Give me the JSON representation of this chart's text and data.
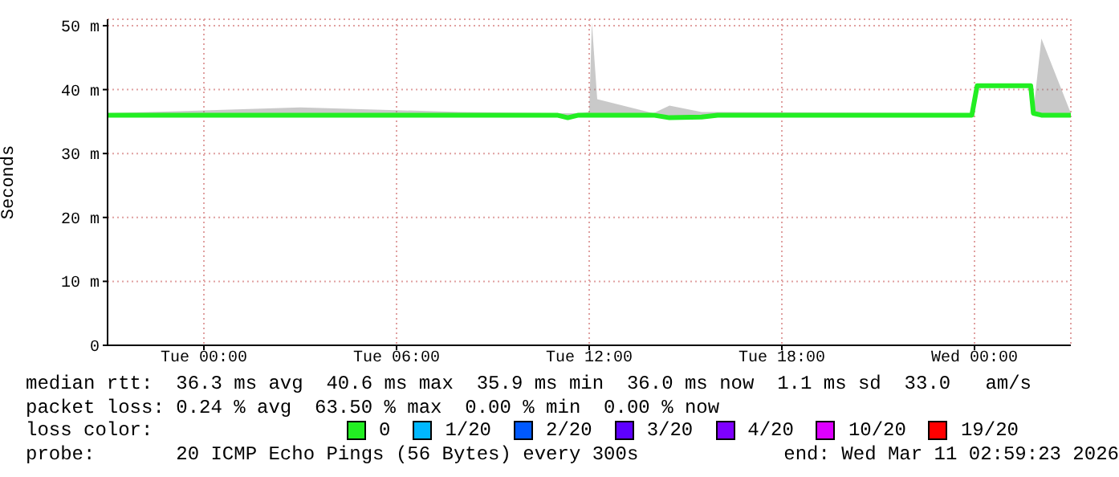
{
  "chart_data": {
    "type": "line",
    "ylabel": "Seconds",
    "legend_title": "loss color:",
    "legend": "bottom",
    "grid": true,
    "xlim": [
      "2026-03-09T21:00",
      "2026-03-11T03:00"
    ],
    "xticks": [
      {
        "value": "2026-03-10T00:00",
        "label": "Tue 00:00"
      },
      {
        "value": "2026-03-10T06:00",
        "label": "Tue 06:00"
      },
      {
        "value": "2026-03-10T12:00",
        "label": "Tue 12:00"
      },
      {
        "value": "2026-03-10T18:00",
        "label": "Tue 18:00"
      },
      {
        "value": "2026-03-11T00:00",
        "label": "Wed 00:00"
      }
    ],
    "ylim": [
      0,
      51
    ],
    "yticks": [
      0,
      {
        "value": 10,
        "label": "10 m"
      },
      {
        "value": 20,
        "label": "20 m"
      },
      {
        "value": 30,
        "label": "30 m"
      },
      {
        "value": 40,
        "label": "40 m"
      },
      {
        "value": 50,
        "label": "50 m"
      }
    ],
    "x": [
      "2026-03-09T21:00",
      "2026-03-10T03:00",
      "2026-03-10T08:00",
      "2026-03-10T11:00",
      "2026-03-10T11:20",
      "2026-03-10T11:40",
      "2026-03-10T12:00",
      "2026-03-10T12:05",
      "2026-03-10T12:15",
      "2026-03-10T14:00",
      "2026-03-10T14:30",
      "2026-03-10T15:30",
      "2026-03-10T16:00",
      "2026-03-10T23:55",
      "2026-03-11T00:05",
      "2026-03-11T01:45",
      "2026-03-11T01:50",
      "2026-03-11T02:05",
      "2026-03-11T03:00"
    ],
    "series": [
      {
        "name": "0",
        "color": "#22ee22",
        "values": [
          36.0,
          36.0,
          36.0,
          36.0,
          35.6,
          36.0,
          36.0,
          36.0,
          36.0,
          36.0,
          35.6,
          35.7,
          36.0,
          36.0,
          40.6,
          40.6,
          36.3,
          36.0,
          36.0
        ],
        "lower": [
          35.8,
          35.8,
          35.8,
          35.8,
          35.5,
          35.8,
          35.8,
          35.8,
          35.8,
          35.8,
          35.5,
          35.5,
          35.8,
          35.8,
          40.4,
          40.4,
          36.0,
          35.8,
          35.8
        ],
        "upper": [
          36.3,
          37.2,
          36.5,
          36.3,
          36.3,
          36.3,
          36.5,
          50.5,
          38.5,
          36.3,
          37.5,
          36.5,
          36.5,
          36.3,
          40.8,
          40.8,
          36.6,
          48.0,
          36.3
        ]
      },
      {
        "name": "1/20",
        "color": "#00b8ff",
        "values": [
          null,
          null,
          null,
          null,
          null,
          null,
          null,
          null,
          null,
          null,
          null,
          null,
          null,
          null,
          null,
          null,
          null,
          null,
          null
        ]
      },
      {
        "name": "2/20",
        "color": "#0059ff",
        "values": [
          null,
          null,
          null,
          null,
          null,
          null,
          null,
          null,
          null,
          null,
          null,
          null,
          null,
          null,
          null,
          null,
          null,
          null,
          null
        ]
      },
      {
        "name": "3/20",
        "color": "#5e00ff",
        "values": [
          null,
          null,
          null,
          null,
          null,
          null,
          null,
          null,
          null,
          null,
          null,
          null,
          null,
          null,
          null,
          null,
          null,
          null,
          null
        ]
      },
      {
        "name": "4/20",
        "color": "#7e00ff",
        "values": [
          null,
          null,
          null,
          null,
          null,
          null,
          null,
          null,
          null,
          null,
          null,
          null,
          null,
          null,
          null,
          null,
          null,
          null,
          null
        ]
      },
      {
        "name": "10/20",
        "color": "#dd00ff",
        "values": [
          null,
          null,
          null,
          null,
          null,
          null,
          null,
          null,
          null,
          null,
          null,
          null,
          null,
          null,
          null,
          null,
          null,
          null,
          null
        ]
      },
      {
        "name": "19/20",
        "color": "#ff0000",
        "values": [
          null,
          null,
          null,
          null,
          null,
          null,
          null,
          null,
          null,
          null,
          null,
          null,
          null,
          null,
          null,
          null,
          null,
          null,
          null
        ]
      }
    ],
    "annotations": [
      "median rtt:  36.3 ms avg  40.6 ms max  35.9 ms min  36.0 ms now  1.1 ms sd  33.0   am/s",
      "packet loss: 0.24 % avg  63.50 % max  0.00 % min  0.00 % now",
      "probe:       20 ICMP Echo Pings (56 Bytes) every 300s",
      "end: Wed Mar 11 02:59:23 2026"
    ]
  }
}
